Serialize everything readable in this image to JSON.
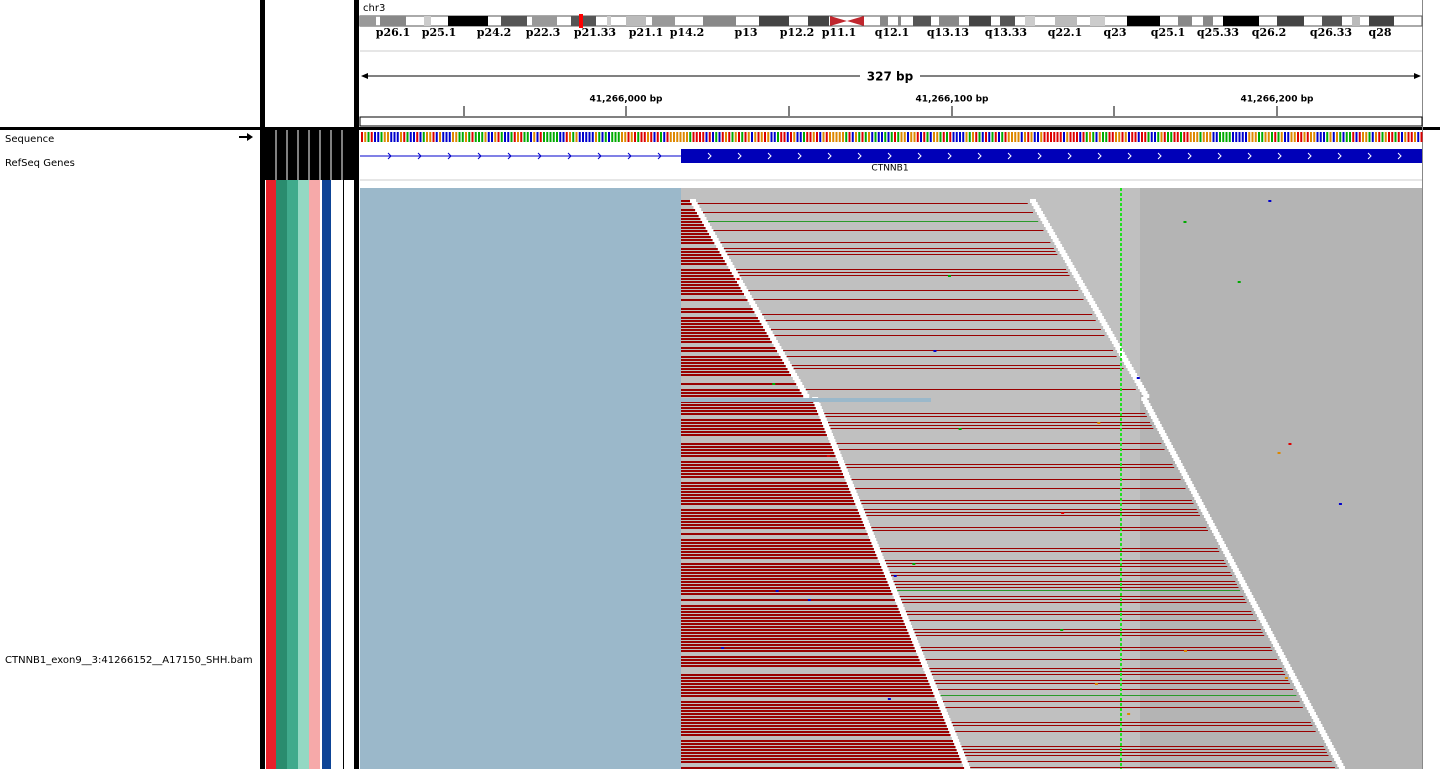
{
  "header": {
    "chromosome": "chr3",
    "bands": [
      "p26.1",
      "p25.1",
      "p24.2",
      "p22.3",
      "p21.33",
      "p21.1",
      "p14.2",
      "p13",
      "p12.2",
      "p11.1",
      "q12.1",
      "q13.13",
      "q13.33",
      "q22.1",
      "q23",
      "q25.1",
      "q25.33",
      "q26.2",
      "q26.33",
      "q28"
    ],
    "span": "327 bp",
    "positions": [
      "41,266,000 bp",
      "41,266,100 bp",
      "41,266,200 bp"
    ]
  },
  "tracks": {
    "sequence": "Sequence",
    "refseq": "RefSeq Genes",
    "gene": "CTNNB1",
    "bam": "CTNNB1_exon9__3:41266152__A17150_SHH.bam"
  }
}
